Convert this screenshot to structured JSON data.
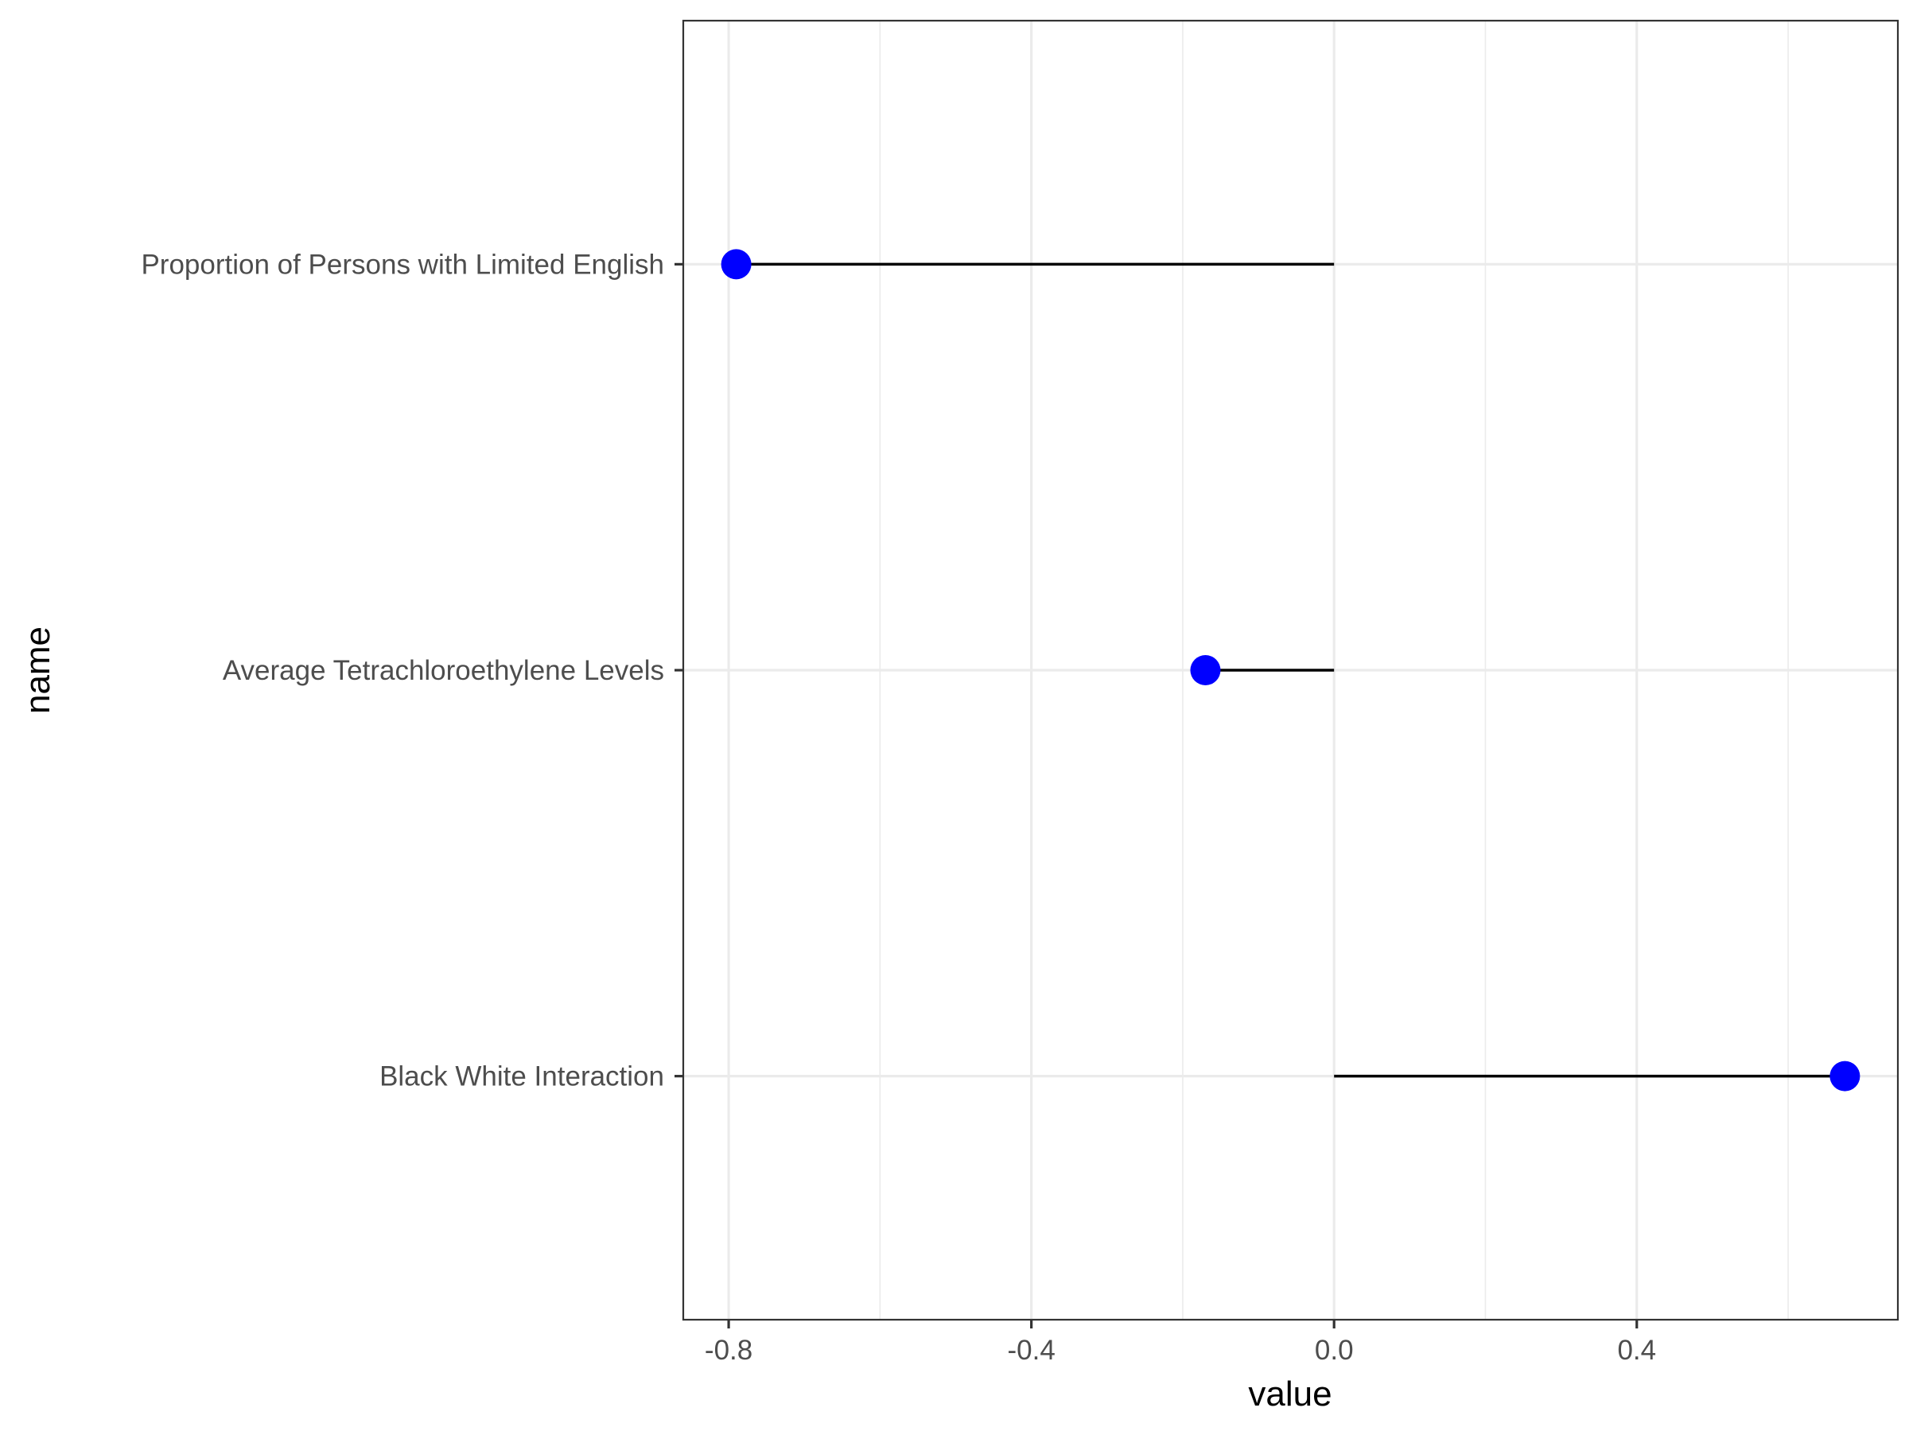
{
  "chart_data": {
    "type": "lollipop",
    "xlabel": "value",
    "ylabel": "name",
    "xlim": [
      -0.86,
      0.745
    ],
    "x_ticks": [
      -0.8,
      -0.4,
      0.0,
      0.4
    ],
    "x_tick_labels": [
      "-0.8",
      "-0.4",
      "0.0",
      "0.4"
    ],
    "x_minor_ticks": [
      -0.6,
      -0.2,
      0.2,
      0.6
    ],
    "categories": [
      "Black White Interaction",
      "Average Tetrachloroethylene Levels",
      "Proportion of Persons with Limited English"
    ],
    "values": [
      0.675,
      -0.17,
      -0.79
    ],
    "baseline": 0,
    "point_color": "#0000ff",
    "stem_color": "#000000",
    "grid": true,
    "legend": "none"
  }
}
